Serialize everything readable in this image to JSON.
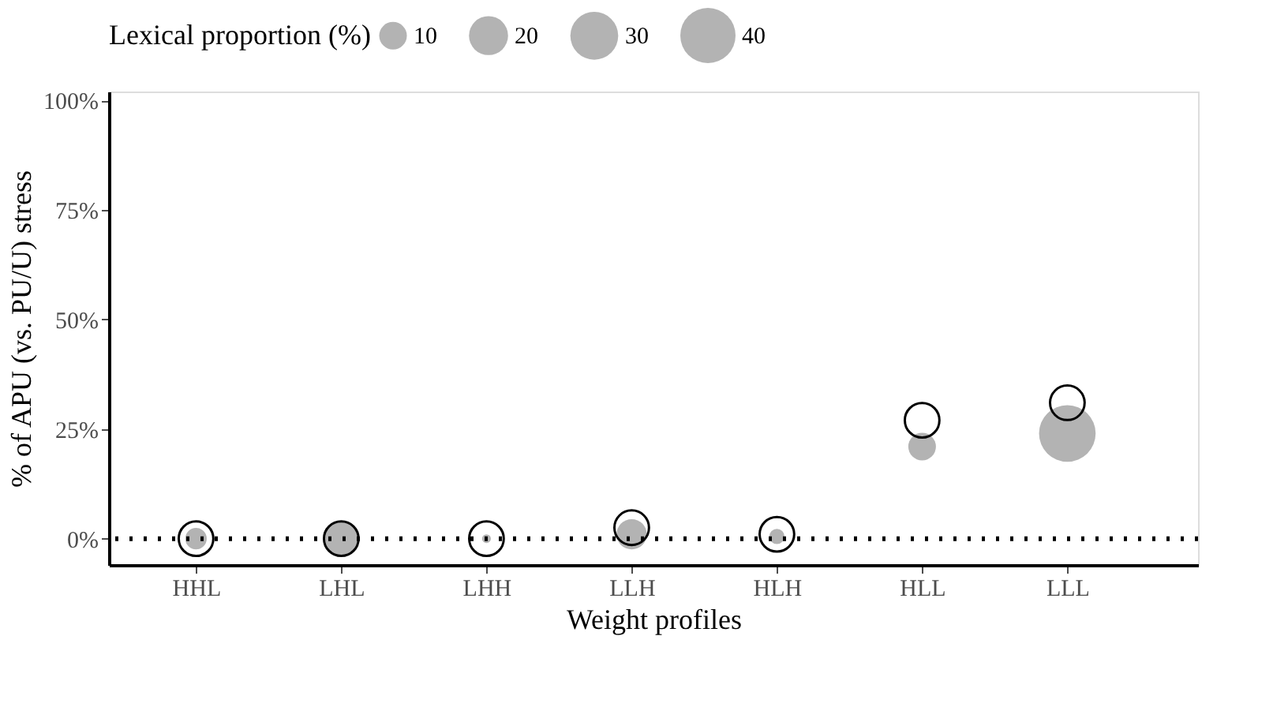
{
  "chart_data": {
    "type": "bubble",
    "xlabel": "Weight profiles",
    "ylabel": "% of APU (vs. PU/U) stress",
    "legend_title": "Lexical proportion (%)",
    "categories": [
      "HHL",
      "LHL",
      "LHH",
      "LLH",
      "HLH",
      "HLL",
      "LLL"
    ],
    "series": [
      {
        "type": "bubble",
        "color": "#b3b3b3",
        "values": [
          0,
          0,
          0,
          1,
          0.5,
          21,
          24
        ],
        "sizes": [
          6,
          15,
          1,
          12,
          3,
          10,
          42
        ]
      },
      {
        "type": "scatter",
        "color": "#000000",
        "marker": "circle",
        "values": [
          0,
          0,
          0,
          2.5,
          1,
          27,
          31
        ]
      }
    ],
    "size_legend": [
      10,
      20,
      30,
      40
    ],
    "ylim": [
      -6,
      102
    ],
    "yticks": [
      {
        "value": 0,
        "label": "0%"
      },
      {
        "value": 25,
        "label": "25%"
      },
      {
        "value": 50,
        "label": "50%"
      },
      {
        "value": 75,
        "label": "75%"
      },
      {
        "value": 100,
        "label": "100%"
      }
    ],
    "ref_lines": [
      {
        "axis": "y",
        "value": 0,
        "color": "#000000",
        "line_style": "dotted"
      }
    ],
    "grid": false
  }
}
